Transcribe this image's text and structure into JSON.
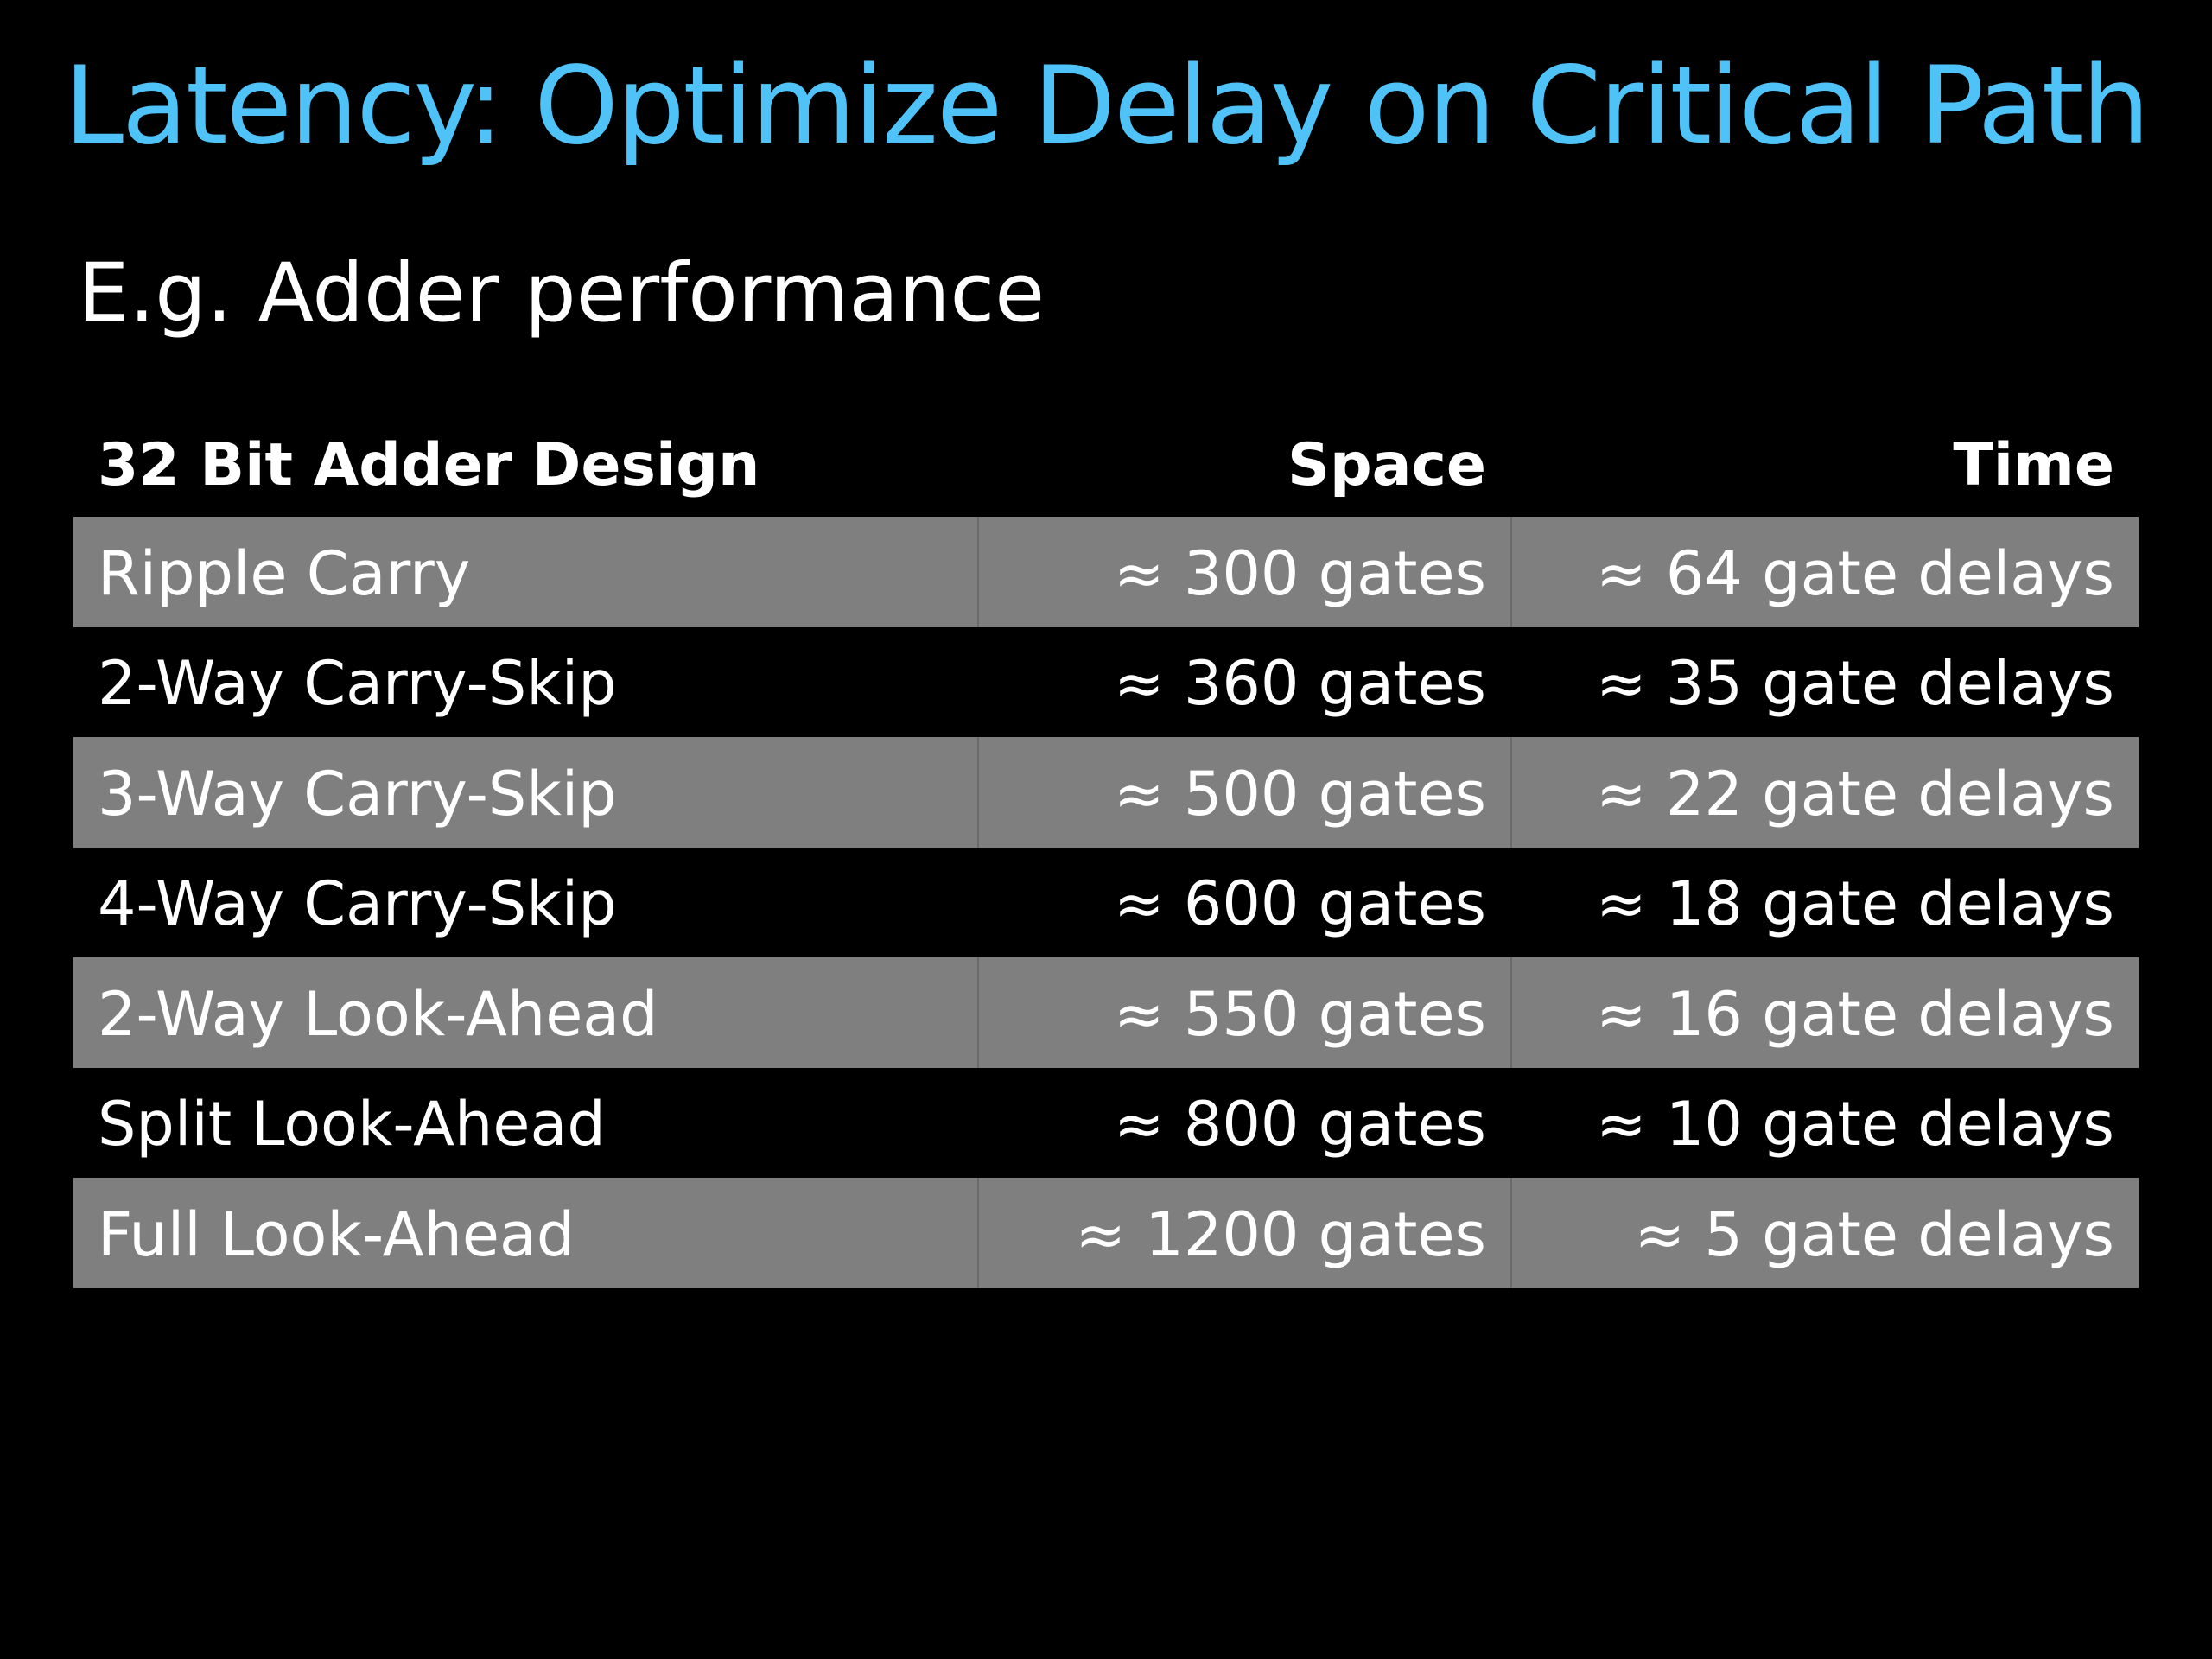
{
  "slide": {
    "title": "Latency: Optimize Delay on Critical Path",
    "title_color": "#4fc3f7",
    "subtitle": "E.g. Adder performance"
  },
  "table": {
    "headers": [
      "32 Bit Adder Design",
      "Space",
      "Time"
    ],
    "shaded_color": "#7f7f7f",
    "rows": [
      {
        "design": "Ripple Carry",
        "space": "≈ 300 gates",
        "time": "≈ 64 gate delays"
      },
      {
        "design": "2-Way Carry-Skip",
        "space": "≈ 360 gates",
        "time": "≈ 35 gate delays"
      },
      {
        "design": "3-Way Carry-Skip",
        "space": "≈ 500 gates",
        "time": "≈ 22 gate delays"
      },
      {
        "design": "4-Way Carry-Skip",
        "space": "≈ 600 gates",
        "time": "≈ 18 gate delays"
      },
      {
        "design": "2-Way Look-Ahead",
        "space": "≈ 550 gates",
        "time": "≈ 16 gate delays"
      },
      {
        "design": "Split Look-Ahead",
        "space": "≈ 800 gates",
        "time": "≈ 10 gate delays"
      },
      {
        "design": "Full Look-Ahead",
        "space": "≈ 1200 gates",
        "time": "≈ 5 gate delays"
      }
    ]
  }
}
